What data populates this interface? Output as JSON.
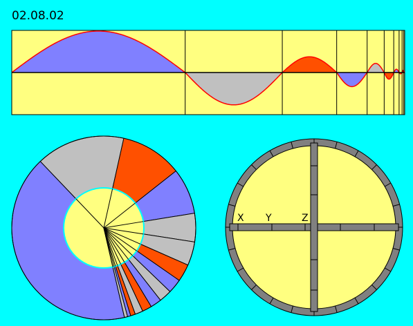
{
  "date_label": "02.08.02",
  "axis_labels": {
    "x": "X",
    "y": "Y",
    "z": "Z"
  },
  "colors": {
    "background": "#00ffff",
    "panel": "#ffff80",
    "blue": "#8080ff",
    "gray": "#c0c0c0",
    "orange": "#ff5000",
    "wave_line": "#ff0000",
    "ring": "#808080",
    "ink": "#000000"
  },
  "wave_segments": [
    {
      "color": "blue",
      "amplitude": 1.0
    },
    {
      "color": "gray",
      "amplitude": -0.78
    },
    {
      "color": "orange",
      "amplitude": 0.38
    },
    {
      "color": "blue",
      "amplitude": -0.34
    },
    {
      "color": "gray",
      "amplitude": 0.22
    },
    {
      "color": "orange",
      "amplitude": -0.16
    },
    {
      "color": "blue",
      "amplitude": 0.08
    },
    {
      "color": "gray",
      "amplitude": -0.03
    },
    {
      "color": "orange",
      "amplitude": 0.05
    },
    {
      "color": "blue",
      "amplitude": 0.02
    }
  ],
  "pie_slices": [
    {
      "color": "blue",
      "angle": 149
    },
    {
      "color": "gray",
      "angle": 56
    },
    {
      "color": "orange",
      "angle": 39
    },
    {
      "color": "blue",
      "angle": 29
    },
    {
      "color": "gray",
      "angle": 18
    },
    {
      "color": "gray",
      "angle": 15
    },
    {
      "color": "orange",
      "angle": 11
    },
    {
      "color": "blue",
      "angle": 9
    },
    {
      "color": "gray",
      "angle": 8
    },
    {
      "color": "blue",
      "angle": 7
    },
    {
      "color": "orange",
      "angle": 6
    },
    {
      "color": "gray",
      "angle": 5
    },
    {
      "color": "orange",
      "angle": 3
    },
    {
      "color": "blue",
      "angle": 2
    },
    {
      "color": "gray",
      "angle": 2
    }
  ]
}
